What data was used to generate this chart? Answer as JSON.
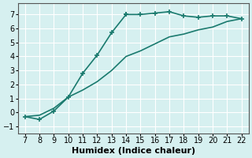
{
  "steep_x": [
    7,
    8,
    9,
    10,
    11,
    12,
    13,
    14
  ],
  "steep_y": [
    -0.3,
    -0.5,
    0.1,
    1.1,
    2.8,
    4.1,
    5.7,
    7.0
  ],
  "top_x": [
    14,
    15,
    16,
    17,
    18,
    19,
    20,
    21,
    22
  ],
  "top_y": [
    7.0,
    7.0,
    7.1,
    7.2,
    6.9,
    6.8,
    6.9,
    6.9,
    6.7
  ],
  "bottom_x": [
    7,
    8,
    9,
    10,
    11,
    12,
    13,
    14,
    15,
    16,
    17,
    18,
    19,
    20,
    21,
    22
  ],
  "bottom_y": [
    -0.3,
    -0.2,
    0.3,
    1.1,
    1.6,
    2.2,
    3.0,
    4.0,
    4.4,
    4.9,
    5.4,
    5.6,
    5.9,
    6.1,
    6.5,
    6.7
  ],
  "color": "#1a7a6e",
  "bg_color": "#d6f0f0",
  "grid_color": "#ffffff",
  "xlabel": "Humidex (Indice chaleur)",
  "xlim": [
    6.5,
    22.5
  ],
  "ylim": [
    -1.5,
    7.8
  ],
  "xticks": [
    7,
    8,
    9,
    10,
    11,
    12,
    13,
    14,
    15,
    16,
    17,
    18,
    19,
    20,
    21,
    22
  ],
  "yticks": [
    -1,
    0,
    1,
    2,
    3,
    4,
    5,
    6,
    7
  ],
  "marker": "+",
  "markersize": 5,
  "linewidth": 1.2,
  "xlabel_fontsize": 8,
  "tick_fontsize": 7
}
